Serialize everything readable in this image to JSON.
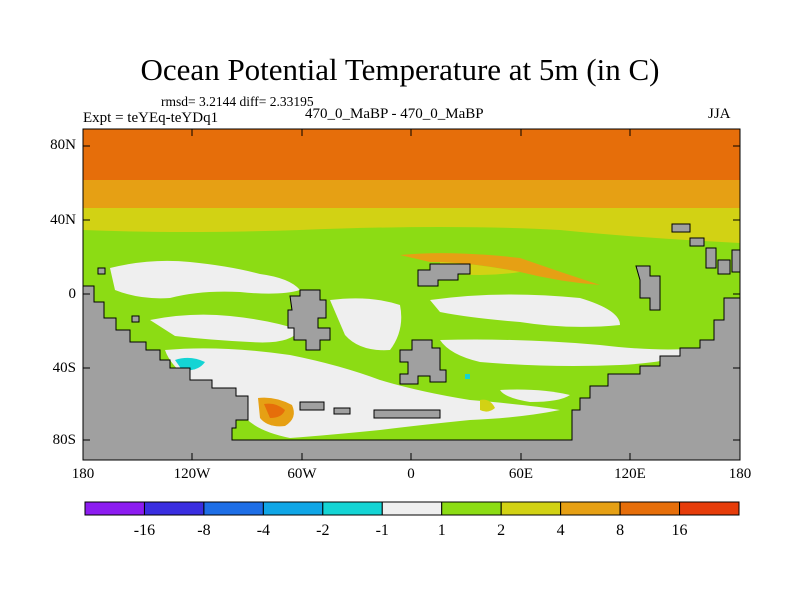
{
  "title": "Ocean Potential Temperature at 5m (in C)",
  "stats": "rmsd= 3.2144 diff= 2.33195",
  "expt": "Expt = teYEq-teYDq1",
  "case": "470_0_MaBP - 470_0_MaBP",
  "season": "JJA",
  "lat_labels": [
    "80N",
    "40N",
    "0",
    "40S",
    "80S"
  ],
  "lon_labels": [
    "180",
    "120W",
    "60W",
    "0",
    "60E",
    "120E",
    "180"
  ],
  "colorbar": {
    "labels": [
      "-16",
      "-8",
      "-4",
      "-2",
      "-1",
      "1",
      "2",
      "4",
      "8",
      "16"
    ],
    "colors": [
      "#8c1cf0",
      "#3a2ee0",
      "#1e6ee6",
      "#10a6e6",
      "#14d4d4",
      "#efefef",
      "#8cdc14",
      "#d2d214",
      "#e6a014",
      "#e66e0a",
      "#e63c0a"
    ]
  },
  "land_color": "#a0a0a0"
}
